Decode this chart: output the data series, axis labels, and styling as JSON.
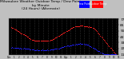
{
  "title_line1": "Milwaukee Weather Outdoor Temp / Dew Point",
  "title_line2": "by Minute",
  "title_line3": "(24 Hours) (Alternate)",
  "title_fontsize": 3.2,
  "bg_color": "#c0c0c0",
  "plot_bg_color": "#000000",
  "legend_labels": [
    "Dew Point",
    "Outdoor Temp"
  ],
  "legend_colors": [
    "#0000ff",
    "#ff0000"
  ],
  "ylim": [
    10,
    78
  ],
  "yticks": [
    11,
    22,
    33,
    44,
    55,
    66,
    77
  ],
  "ylabel_fontsize": 3.2,
  "grid_color": "#555555",
  "temp_color": "#ff2020",
  "dew_color": "#2020ff",
  "temp_data": [
    62,
    61,
    60,
    59,
    58,
    57,
    56,
    55,
    54,
    53,
    52,
    51,
    50,
    49,
    48,
    47,
    46,
    45,
    44,
    43,
    42,
    41,
    40,
    39,
    38,
    38,
    37,
    37,
    37,
    37,
    37,
    37,
    37,
    37,
    37,
    37,
    37,
    37,
    37,
    37,
    37,
    37,
    37,
    37,
    38,
    38,
    39,
    39,
    40,
    41,
    42,
    43,
    44,
    45,
    46,
    47,
    48,
    49,
    50,
    51,
    52,
    53,
    54,
    55,
    56,
    57,
    58,
    59,
    60,
    61,
    62,
    63,
    63,
    63,
    64,
    64,
    64,
    64,
    65,
    65,
    65,
    65,
    64,
    64,
    64,
    63,
    63,
    63,
    63,
    63,
    62,
    62,
    61,
    60,
    59,
    58,
    56,
    54,
    52,
    50,
    48,
    46,
    44,
    42,
    40,
    38,
    36,
    34,
    32,
    30,
    28,
    26,
    24,
    22,
    20,
    18,
    16,
    14,
    12,
    11
  ],
  "dew_data": [
    24,
    24,
    23,
    23,
    23,
    23,
    23,
    23,
    23,
    22,
    22,
    22,
    22,
    22,
    22,
    21,
    21,
    21,
    21,
    21,
    21,
    20,
    20,
    20,
    20,
    19,
    19,
    19,
    19,
    19,
    19,
    19,
    19,
    19,
    19,
    19,
    19,
    19,
    19,
    19,
    19,
    19,
    19,
    19,
    20,
    20,
    20,
    20,
    20,
    21,
    21,
    21,
    22,
    22,
    22,
    23,
    23,
    24,
    24,
    25,
    25,
    26,
    26,
    27,
    27,
    27,
    28,
    28,
    28,
    29,
    29,
    29,
    30,
    30,
    30,
    31,
    31,
    31,
    31,
    31,
    31,
    31,
    31,
    30,
    30,
    30,
    29,
    29,
    28,
    27,
    26,
    25,
    24,
    23,
    22,
    21,
    20,
    19,
    18,
    17,
    16,
    15,
    14,
    13,
    12,
    11,
    11,
    11,
    11,
    11,
    11,
    11,
    11,
    11,
    11,
    11,
    11,
    11,
    11,
    11
  ],
  "xtick_labels": [
    "12a",
    "1",
    "2",
    "3",
    "4",
    "5",
    "6",
    "7",
    "8",
    "9",
    "10",
    "11",
    "12p",
    "1",
    "2",
    "3",
    "4",
    "5",
    "6",
    "7",
    "8",
    "9",
    "10",
    "11"
  ],
  "num_hours": 24
}
